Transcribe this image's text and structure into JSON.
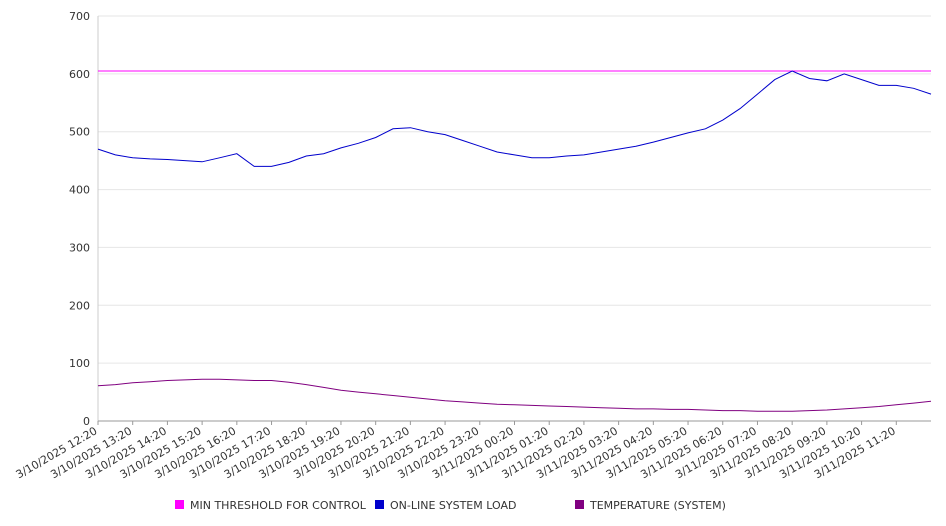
{
  "chart_data": {
    "type": "line",
    "title": "",
    "xlabel": "",
    "ylabel": "",
    "ylim": [
      0,
      700
    ],
    "yticks": [
      0,
      100,
      200,
      300,
      400,
      500,
      600,
      700
    ],
    "grid": true,
    "legend_position": "bottom",
    "x_tick_labels": [
      "3/10/2025 12:20",
      "3/10/2025 13:20",
      "3/10/2025 14:20",
      "3/10/2025 15:20",
      "3/10/2025 16:20",
      "3/10/2025 17:20",
      "3/10/2025 18:20",
      "3/10/2025 19:20",
      "3/10/2025 20:20",
      "3/10/2025 21:20",
      "3/10/2025 22:20",
      "3/10/2025 23:20",
      "3/11/2025 00:20",
      "3/11/2025 01:20",
      "3/11/2025 02:20",
      "3/11/2025 03:20",
      "3/11/2025 04:20",
      "3/11/2025 05:20",
      "3/11/2025 06:20",
      "3/11/2025 07:20",
      "3/11/2025 08:20",
      "3/11/2025 09:20",
      "3/11/2025 10:20",
      "3/11/2025 11:20"
    ],
    "x_hours": [
      0,
      0.5,
      1,
      1.5,
      2,
      2.5,
      3,
      3.5,
      4,
      4.5,
      5,
      5.5,
      6,
      6.5,
      7,
      7.5,
      8,
      8.5,
      9,
      9.5,
      10,
      10.5,
      11,
      11.5,
      12,
      12.5,
      13,
      13.5,
      14,
      14.5,
      15,
      15.5,
      16,
      16.5,
      17,
      17.5,
      18,
      18.5,
      19,
      19.5,
      20,
      20.5,
      21,
      21.5,
      22,
      22.5,
      23,
      23.5,
      24
    ],
    "series": [
      {
        "name": "MIN THRESHOLD FOR CONTROL",
        "color": "#ff00ff",
        "values": [
          605,
          605,
          605,
          605,
          605,
          605,
          605,
          605,
          605,
          605,
          605,
          605,
          605,
          605,
          605,
          605,
          605,
          605,
          605,
          605,
          605,
          605,
          605,
          605,
          605,
          605,
          605,
          605,
          605,
          605,
          605,
          605,
          605,
          605,
          605,
          605,
          605,
          605,
          605,
          605,
          605,
          605,
          605,
          605,
          605,
          605,
          605,
          605,
          605
        ]
      },
      {
        "name": "ON-LINE SYSTEM LOAD",
        "color": "#0000cc",
        "values": [
          470,
          460,
          455,
          453,
          452,
          450,
          448,
          455,
          462,
          440,
          440,
          447,
          458,
          462,
          472,
          480,
          490,
          505,
          507,
          500,
          495,
          485,
          475,
          465,
          460,
          455,
          455,
          458,
          460,
          465,
          470,
          475,
          482,
          490,
          498,
          505,
          520,
          540,
          565,
          590,
          605,
          592,
          588,
          600,
          590,
          580,
          580,
          575,
          565
        ]
      },
      {
        "name": "TEMPERATURE (SYSTEM)",
        "color": "#800080",
        "values": [
          61,
          63,
          66,
          68,
          70,
          71,
          72,
          72,
          71,
          70,
          70,
          67,
          63,
          58,
          53,
          50,
          47,
          44,
          41,
          38,
          35,
          33,
          31,
          29,
          28,
          27,
          26,
          25,
          24,
          23,
          22,
          21,
          21,
          20,
          20,
          19,
          18,
          18,
          17,
          17,
          17,
          18,
          19,
          21,
          23,
          25,
          28,
          31,
          34
        ]
      }
    ]
  }
}
